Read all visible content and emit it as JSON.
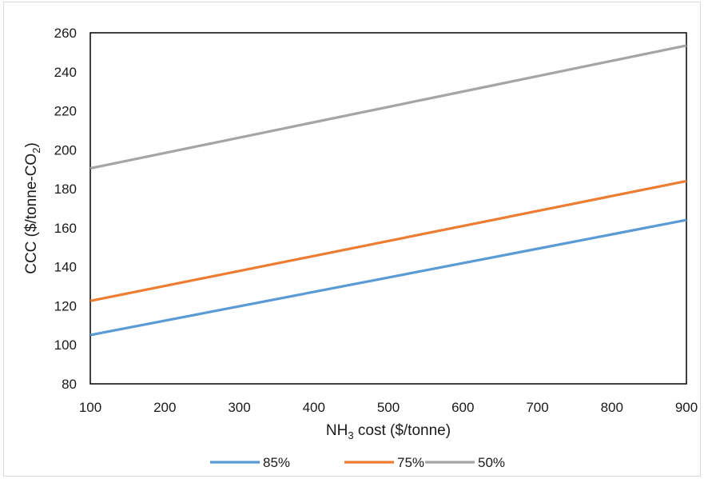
{
  "chart_data": {
    "type": "line",
    "x": [
      100,
      900
    ],
    "xlim": [
      100,
      900
    ],
    "ylim": [
      80,
      260
    ],
    "xticks": [
      "100",
      "200",
      "300",
      "400",
      "500",
      "600",
      "700",
      "800",
      "900"
    ],
    "yticks": [
      "80",
      "100",
      "120",
      "140",
      "160",
      "180",
      "200",
      "220",
      "240",
      "260"
    ],
    "xlabel": {
      "pre": "NH",
      "sub": "3",
      "post": " cost ($/tonne)"
    },
    "ylabel": {
      "pre": "CCC ($/tonne-CO",
      "sub": "2",
      "post": ")"
    },
    "grid": false,
    "legend_position": "bottom",
    "series": [
      {
        "name": "85%",
        "color": "#5b9bd5",
        "values": [
          105,
          164
        ]
      },
      {
        "name": "75%",
        "color": "#ed7d31",
        "values": [
          122.5,
          184
        ]
      },
      {
        "name": "50%",
        "color": "#a5a5a5",
        "values": [
          190.5,
          253.5
        ]
      }
    ]
  }
}
